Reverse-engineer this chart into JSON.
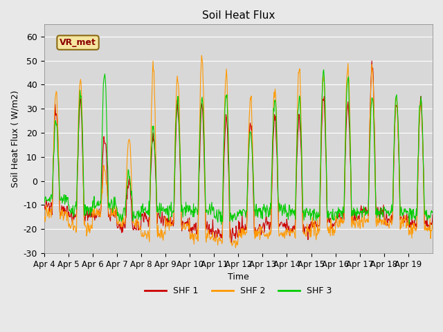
{
  "title": "Soil Heat Flux",
  "ylabel": "Soil Heat Flux ( W/m2)",
  "xlabel": "Time",
  "annotation": "VR_met",
  "ylim": [
    -30,
    65
  ],
  "background_color": "#e8e8e8",
  "plot_bg_color": "#d8d8d8",
  "series_colors": {
    "SHF 1": "#cc0000",
    "SHF 2": "#ff9900",
    "SHF 3": "#00cc00"
  },
  "xtick_labels": [
    "Apr 4",
    "Apr 5",
    "Apr 6",
    "Apr 7",
    "Apr 8",
    "Apr 9",
    "Apr 10",
    "Apr 11",
    "Apr 12",
    "Apr 13",
    "Apr 14",
    "Apr 15",
    "Apr 16",
    "Apr 17",
    "Apr 18",
    "Apr 19"
  ],
  "ytick_labels": [
    -30,
    -20,
    -10,
    0,
    10,
    20,
    30,
    40,
    50,
    60
  ],
  "num_days": 16,
  "points_per_day": 48,
  "shf1_peaks": [
    29,
    33,
    19,
    -2,
    18,
    31,
    31,
    26,
    24,
    27,
    27,
    35,
    32,
    49,
    33,
    33
  ],
  "shf2_peaks": [
    37,
    42,
    4,
    19,
    47,
    44,
    52,
    44,
    35,
    40,
    47,
    45,
    48,
    48,
    34,
    34
  ],
  "shf3_peaks": [
    24,
    36,
    45,
    3,
    21,
    33,
    34,
    36,
    21,
    34,
    35,
    45,
    42,
    35,
    35,
    35
  ],
  "shf1_nights": [
    -11,
    -15,
    -14,
    -19,
    -15,
    -17,
    -20,
    -22,
    -20,
    -18,
    -20,
    -18,
    -15,
    -13,
    -16,
    -18
  ],
  "shf2_nights": [
    -14,
    -19,
    -13,
    -18,
    -22,
    -18,
    -23,
    -25,
    -21,
    -22,
    -22,
    -20,
    -17,
    -17,
    -17,
    -20
  ],
  "shf3_nights": [
    -8,
    -12,
    -10,
    -14,
    -12,
    -12,
    -12,
    -15,
    -13,
    -12,
    -13,
    -14,
    -13,
    -13,
    -13,
    -14
  ]
}
